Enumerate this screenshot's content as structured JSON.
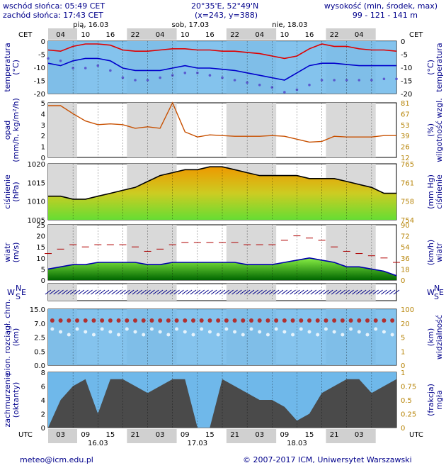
{
  "header": {
    "sunrise": "wschód słońca: 05:49 CET",
    "sunset": "zachód słońca: 17:43 CET",
    "coords": "20°35'E, 52°49'N",
    "grid": "(x=243, y=388)",
    "elev_label": "wysokość (min, środek, max)",
    "elev_values": "99 - 121 - 141 m"
  },
  "top_axis": {
    "tz_left": "CET",
    "tz_right": "CET",
    "hours": [
      "04",
      "10",
      "16",
      "22",
      "04",
      "10",
      "16",
      "22",
      "04",
      "10",
      "16",
      "22",
      "04"
    ],
    "days": [
      "pią, 16.03",
      "sob, 17.03",
      "nie, 18.03"
    ]
  },
  "bottom_axis": {
    "tz_left": "UTC",
    "tz_right": "UTC",
    "hours": [
      "03",
      "09",
      "15",
      "21",
      "03",
      "09",
      "15",
      "21",
      "03",
      "09",
      "15",
      "21",
      "03"
    ],
    "dates": [
      "16.03",
      "17.03",
      "18.03"
    ]
  },
  "footer": {
    "email": "meteo@icm.edu.pl",
    "copyright": "© 2007-2017 ICM, Uniwersytet Warszawski"
  },
  "panels": {
    "temperature": {
      "left": "temperatura",
      "left_unit": "(°C)",
      "right": "temperatura",
      "right_unit": "(°C)",
      "ticks": [
        "0",
        "-5",
        "-10",
        "-15",
        "-20"
      ]
    },
    "precip": {
      "left": "opad",
      "left_unit": "(mm/h, kg/m²/h)",
      "right": "wilgotność wzgl.",
      "right_unit": "(%)",
      "ticks": [
        "5",
        "4",
        "3",
        "2",
        "1",
        "0"
      ],
      "rticks": [
        "81",
        "67",
        "53",
        "39",
        "26",
        "12"
      ]
    },
    "pressure": {
      "left": "ciśnienie",
      "left_unit": "(hPa)",
      "right": "ciśnienie",
      "right_unit": "(mm Hg)",
      "ticks": [
        "1020",
        "1015",
        "1010",
        "1005"
      ],
      "rticks": [
        "765",
        "761",
        "758",
        "754"
      ]
    },
    "wind": {
      "left": "wiatr",
      "left_unit": "(m/s)",
      "right": "wiatr",
      "right_unit": "(km/h)",
      "ticks": [
        "25",
        "20",
        "15",
        "10",
        "5",
        "0"
      ],
      "rticks": [
        "90",
        "72",
        "54",
        "36",
        "18",
        "0"
      ]
    },
    "winddir": {
      "compass_n": "N",
      "compass_w": "W",
      "compass_s": "S",
      "compass_e": "E"
    },
    "clouds": {
      "left": "pion. rozciągł. chm.",
      "left_unit": "(km)",
      "right": "widzialność",
      "right_unit": "(km)",
      "ticks": [
        "15.0",
        "7.0",
        "2.5",
        "0.5",
        "0.0"
      ],
      "rticks": [
        "100",
        "20",
        "5",
        "1",
        "0"
      ]
    },
    "cover": {
      "left": "zachmurzenie",
      "left_unit": "(oktanty)",
      "right": "mgła",
      "right_unit": "(frakcja)",
      "ticks": [
        "8",
        "6",
        "4",
        "2",
        "0"
      ],
      "rticks": [
        "1",
        "0.75",
        "0.5",
        "0.25",
        "0"
      ]
    }
  },
  "chart_data": {
    "type": "line",
    "x_hours_from_start": [
      0,
      3,
      6,
      9,
      12,
      15,
      18,
      21,
      24,
      27,
      30,
      33,
      36,
      39,
      42,
      45,
      48,
      51,
      54,
      57,
      60,
      63,
      66,
      69,
      72,
      75,
      78,
      81,
      84
    ],
    "series": [
      {
        "panel": "temperature",
        "role": "max",
        "values": [
          -2.5,
          -3,
          -1,
          0,
          0,
          -0.5,
          -2.5,
          -3,
          -3,
          -2.5,
          -2,
          -2,
          -2.5,
          -2.5,
          -3,
          -3,
          -3.5,
          -4,
          -5,
          -6,
          -5,
          -2,
          0,
          -1,
          -1,
          -2,
          -2.5,
          -2.5,
          -3
        ]
      },
      {
        "panel": "temperature",
        "role": "mean",
        "values": [
          -8,
          -9,
          -7,
          -6,
          -6,
          -7,
          -10,
          -11,
          -11,
          -11,
          -10,
          -9,
          -10,
          -10,
          -10.5,
          -11,
          -12,
          -13,
          -14,
          -15,
          -12,
          -9,
          -8,
          -8,
          -8.5,
          -9,
          -9,
          -9,
          -9
        ]
      },
      {
        "panel": "temperature",
        "role": "dew",
        "values": [
          -6,
          -7,
          -10,
          -10,
          -9,
          -11,
          -14,
          -15,
          -15,
          -14,
          -13,
          -12,
          -12,
          -13,
          -14,
          -15,
          -16,
          -17,
          -18,
          -20,
          -19,
          -17,
          -15,
          -15,
          -15,
          -15,
          -15,
          -14.5,
          -14.5
        ]
      },
      {
        "panel": "humidity",
        "role": "relative_humidity_pct",
        "values": [
          81,
          81,
          70,
          60,
          55,
          56,
          55,
          50,
          52,
          50,
          85,
          45,
          38,
          41,
          40,
          39,
          39,
          39,
          40,
          39,
          35,
          31,
          32,
          39,
          38,
          38,
          38,
          40,
          40
        ]
      },
      {
        "panel": "pressure",
        "role": "pressure_hpa",
        "values": [
          1010,
          1010,
          1009,
          1009,
          1010,
          1011,
          1012,
          1013,
          1015,
          1017,
          1018,
          1019,
          1019,
          1020,
          1020,
          1019,
          1018,
          1017,
          1017,
          1017,
          1017,
          1016,
          1016,
          1016,
          1015,
          1014,
          1013,
          1011,
          1011
        ]
      },
      {
        "panel": "wind",
        "role": "speed_ms",
        "values": [
          5,
          6,
          7,
          7,
          8,
          8,
          8,
          8,
          7,
          7,
          8,
          8,
          8,
          8,
          8,
          8,
          7,
          7,
          7,
          8,
          9,
          10,
          9,
          8,
          6,
          6,
          5,
          4,
          2
        ]
      },
      {
        "panel": "wind",
        "role": "gust_ms",
        "values": [
          12,
          14,
          16,
          15,
          16,
          16,
          16,
          15,
          13,
          14,
          16,
          17,
          17,
          17,
          17,
          17,
          16,
          16,
          16,
          18,
          20,
          19,
          18,
          15,
          13,
          12,
          11,
          10,
          8
        ]
      },
      {
        "panel": "cover",
        "role": "cloud_octants",
        "values": [
          0,
          4,
          6,
          7,
          2,
          7,
          7,
          6,
          5,
          6,
          7,
          7,
          0,
          0,
          7,
          6,
          5,
          4,
          4,
          3,
          1,
          2,
          5,
          6,
          7,
          7,
          5,
          6,
          7
        ]
      }
    ],
    "ylim": {
      "temperature": [
        -20,
        0
      ],
      "precip": [
        0,
        5
      ],
      "pressure": [
        1002,
        1021
      ],
      "wind": [
        0,
        25
      ],
      "cover": [
        0,
        8
      ]
    }
  }
}
